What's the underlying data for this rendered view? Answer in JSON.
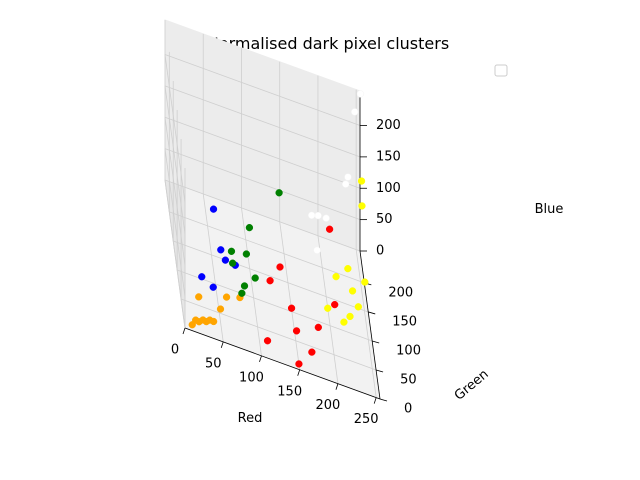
{
  "chart_data": {
    "type": "scatter3d",
    "title": "Normalised dark pixel clusters",
    "xlabel": "Red",
    "ylabel": "Green",
    "zlabel": "Blue",
    "xlim": [
      0,
      255
    ],
    "ylim": [
      0,
      255
    ],
    "zlim": [
      0,
      255
    ],
    "x_ticks": [
      0,
      50,
      100,
      150,
      200,
      250
    ],
    "y_ticks": [
      0,
      50,
      100,
      150,
      200
    ],
    "z_ticks": [
      0,
      50,
      100,
      150,
      200
    ],
    "grid": true,
    "legend": {
      "placement": "top-right",
      "entries": []
    },
    "series": [
      {
        "color": "#ff0000",
        "points": [
          [
            110,
            20,
            10
          ],
          [
            150,
            40,
            25
          ],
          [
            145,
            55,
            45
          ],
          [
            120,
            85,
            50
          ],
          [
            180,
            55,
            30
          ],
          [
            205,
            90,
            45
          ],
          [
            170,
            40,
            0
          ],
          [
            135,
            105,
            60
          ],
          [
            205,
            155,
            105
          ],
          [
            150,
            10,
            0
          ]
        ]
      },
      {
        "color": "#ffff00",
        "points": [
          [
            215,
            70,
            40
          ],
          [
            225,
            90,
            35
          ],
          [
            240,
            130,
            20
          ],
          [
            250,
            145,
            50
          ],
          [
            235,
            155,
            20
          ],
          [
            255,
            235,
            130
          ],
          [
            255,
            230,
            95
          ],
          [
            235,
            215,
            0
          ],
          [
            215,
            170,
            20
          ],
          [
            200,
            130,
            0
          ]
        ]
      },
      {
        "color": "#ffffff",
        "points": [
          [
            185,
            120,
            95
          ],
          [
            190,
            155,
            120
          ],
          [
            225,
            145,
            195
          ],
          [
            230,
            165,
            190
          ],
          [
            245,
            225,
            245
          ],
          [
            255,
            250,
            255
          ],
          [
            200,
            150,
            125
          ],
          [
            180,
            140,
            130
          ]
        ]
      },
      {
        "color": "#008000",
        "points": [
          [
            70,
            75,
            65
          ],
          [
            85,
            70,
            40
          ],
          [
            100,
            80,
            50
          ],
          [
            70,
            90,
            70
          ],
          [
            90,
            95,
            70
          ],
          [
            95,
            105,
            105
          ],
          [
            80,
            55,
            40
          ],
          [
            140,
            165,
            125
          ]
        ]
      },
      {
        "color": "#0000ff",
        "points": [
          [
            60,
            70,
            70
          ],
          [
            75,
            90,
            50
          ],
          [
            55,
            80,
            75
          ],
          [
            40,
            30,
            55
          ],
          [
            25,
            30,
            65
          ],
          [
            45,
            75,
            140
          ]
        ]
      },
      {
        "color": "#ffa500",
        "points": [
          [
            10,
            5,
            5
          ],
          [
            15,
            10,
            10
          ],
          [
            20,
            15,
            5
          ],
          [
            25,
            15,
            10
          ],
          [
            30,
            20,
            5
          ],
          [
            40,
            25,
            5
          ],
          [
            50,
            35,
            20
          ],
          [
            60,
            55,
            25
          ],
          [
            20,
            20,
            40
          ],
          [
            80,
            80,
            10
          ],
          [
            35,
            25,
            5
          ]
        ]
      }
    ]
  }
}
